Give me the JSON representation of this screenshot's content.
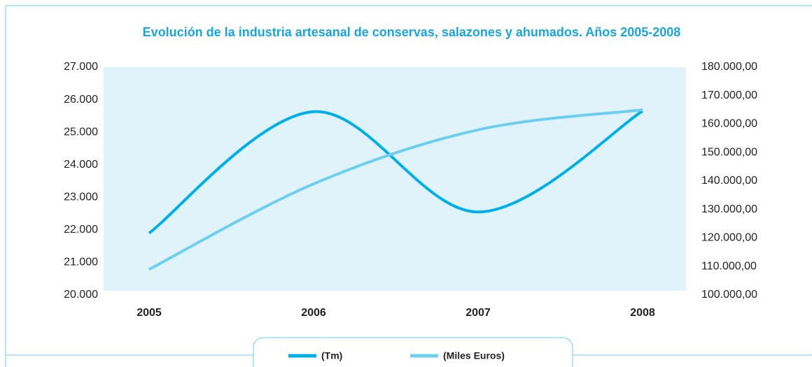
{
  "chart_data": {
    "type": "line",
    "title": "Evolución de la industria artesanal de conservas, salazones y ahumados. Años 2005-2008",
    "categories": [
      "2005",
      "2006",
      "2007",
      "2008"
    ],
    "series": [
      {
        "name": "(Tm)",
        "color": "#00aee8",
        "values": [
          21900,
          25630,
          22550,
          25650
        ]
      },
      {
        "name": "(Miles Euros)",
        "color": "#6dcff0",
        "axis": "y2",
        "values": [
          109000,
          139000,
          158000,
          165000
        ]
      }
    ],
    "ylim": [
      20000,
      27000
    ],
    "yticks": [
      {
        "value": 20000,
        "label": "20.000"
      },
      {
        "value": 21000,
        "label": "21.000"
      },
      {
        "value": 22000,
        "label": "22.000"
      },
      {
        "value": 23000,
        "label": "23.000"
      },
      {
        "value": 24000,
        "label": "24.000"
      },
      {
        "value": 25000,
        "label": "25.000"
      },
      {
        "value": 26000,
        "label": "26.000"
      },
      {
        "value": 27000,
        "label": "27.000"
      }
    ],
    "y2lim": [
      100000,
      180000
    ],
    "y2ticks": [
      {
        "value": 100000,
        "label": "100.000,00"
      },
      {
        "value": 110000,
        "label": "110.000,00"
      },
      {
        "value": 120000,
        "label": "120.000,00"
      },
      {
        "value": 130000,
        "label": "130.000,00"
      },
      {
        "value": 140000,
        "label": "140.000,00"
      },
      {
        "value": 150000,
        "label": "150.000,00"
      },
      {
        "value": 160000,
        "label": "160.000,00"
      },
      {
        "value": 170000,
        "label": "170.000,00"
      },
      {
        "value": 180000,
        "label": "180.000,00"
      }
    ],
    "plot_background": "#e0f3fa"
  }
}
